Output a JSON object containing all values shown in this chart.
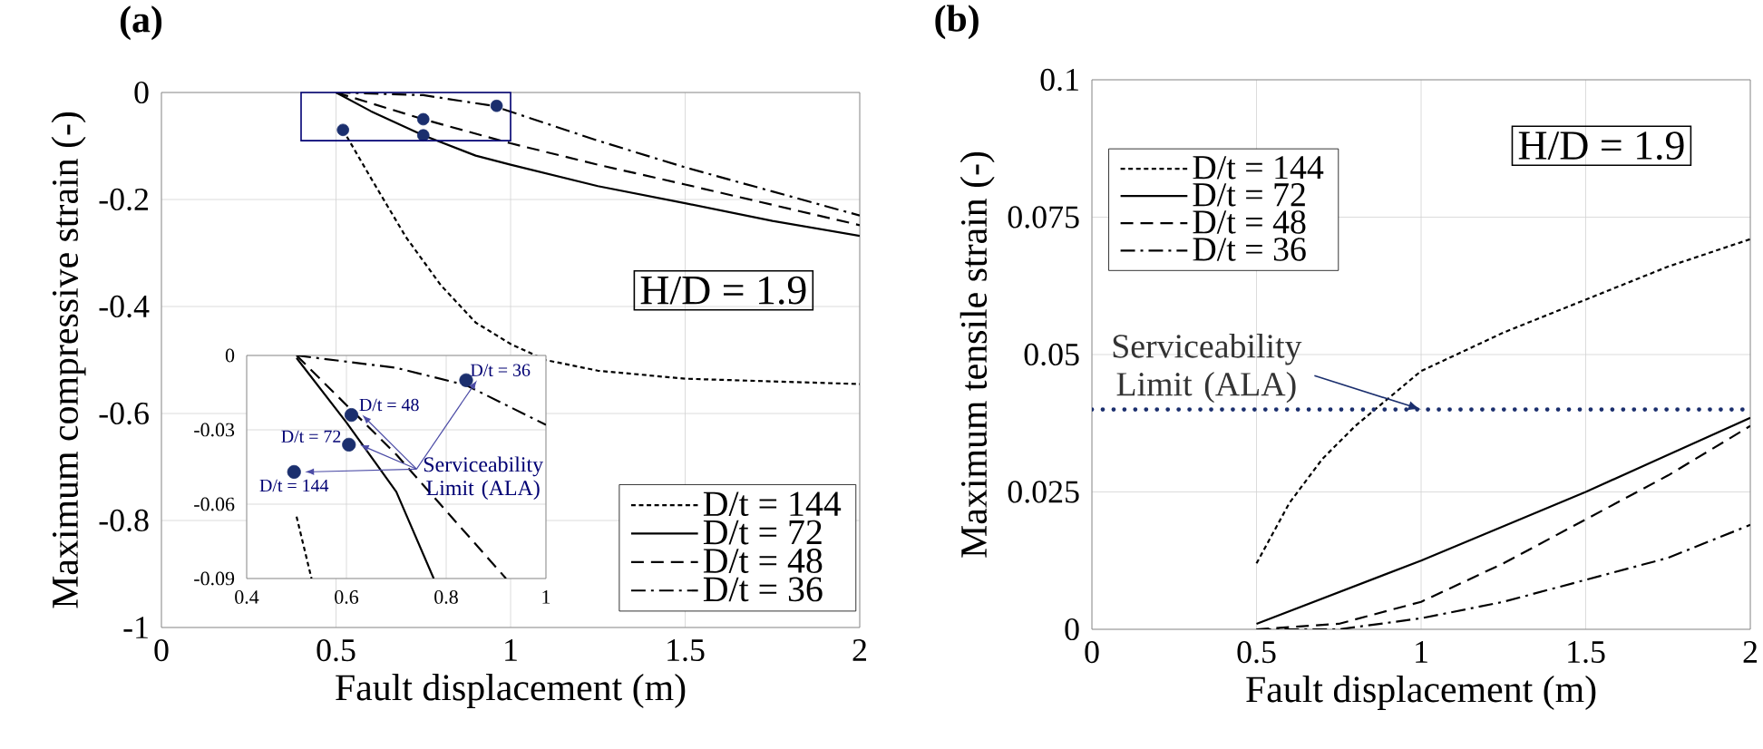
{
  "chart_data": [
    {
      "type": "line",
      "title": "(a)",
      "xlabel": "Fault displacement (m)",
      "ylabel": "Maximum compressive strain (-)",
      "xlim": [
        0,
        2
      ],
      "ylim": [
        -1,
        0
      ],
      "xticks": [
        0,
        0.5,
        1,
        1.5,
        2
      ],
      "yticks": [
        -1,
        -0.8,
        -0.6,
        -0.4,
        -0.2,
        0
      ],
      "grid": true,
      "legend": "bottom right",
      "annotations": [
        "H/D = 1.9"
      ],
      "series": [
        {
          "name": "D/t = 144",
          "color": "#000000",
          "line_style": "dotted",
          "x": [
            0.52,
            0.6,
            0.7,
            0.8,
            0.9,
            1.0,
            1.1,
            1.25,
            1.5,
            2
          ],
          "values": [
            -0.07,
            -0.16,
            -0.27,
            -0.36,
            -0.43,
            -0.47,
            -0.5,
            -0.52,
            -0.535,
            -0.545
          ]
        },
        {
          "name": "D/t = 72",
          "color": "#000000",
          "line_style": "solid",
          "x": [
            0.5,
            0.6,
            0.75,
            0.9,
            1,
            1.25,
            1.5,
            1.75,
            2
          ],
          "values": [
            0,
            -0.035,
            -0.08,
            -0.118,
            -0.135,
            -0.175,
            -0.207,
            -0.24,
            -0.268
          ]
        },
        {
          "name": "D/t = 48",
          "color": "#000000",
          "line_style": "dashed",
          "x": [
            0.5,
            0.75,
            1,
            1.25,
            1.5,
            1.75,
            2
          ],
          "values": [
            0,
            -0.05,
            -0.095,
            -0.135,
            -0.172,
            -0.21,
            -0.248
          ]
        },
        {
          "name": "D/t = 36",
          "color": "#000000",
          "line_style": "dashdot",
          "x": [
            0.5,
            0.75,
            0.95,
            1.25,
            1.5,
            1.75,
            2
          ],
          "values": [
            0,
            -0.005,
            -0.025,
            -0.09,
            -0.14,
            -0.185,
            -0.23
          ]
        },
        {
          "type": "scatter",
          "color": "#1b2f6e",
          "marker": "circle",
          "x": [
            0.52,
            0.75,
            0.75,
            0.96
          ],
          "values": [
            -0.07,
            -0.08,
            -0.05,
            -0.025
          ]
        }
      ]
    },
    {
      "type": "line",
      "xlim": [
        0.4,
        1
      ],
      "ylim": [
        -0.09,
        0
      ],
      "xticks": [
        0.4,
        0.6,
        0.8,
        1
      ],
      "yticks": [
        -0.09,
        -0.06,
        -0.03,
        0
      ],
      "grid": true,
      "annotations": [
        {
          "text": "D/t = 36",
          "x": 0.84,
          "y": -0.01
        },
        {
          "text": "D/t = 48",
          "x": 0.61,
          "y": -0.024
        },
        {
          "text": "D/t = 72",
          "x": 0.605,
          "y": -0.036
        },
        {
          "text": "D/t = 144",
          "x": 0.495,
          "y": -0.047
        },
        {
          "text": "Serviceability Limit (ALA)",
          "x": 0.84,
          "y": -0.01
        }
      ],
      "series": [
        {
          "color": "#000000",
          "line_style": "dotted",
          "x": [
            0.5,
            0.53
          ],
          "values": [
            -0.065,
            -0.09
          ]
        },
        {
          "color": "#000000",
          "line_style": "solid",
          "x": [
            0.5,
            0.6,
            0.7,
            0.775
          ],
          "values": [
            -0.001,
            -0.027,
            -0.055,
            -0.09
          ]
        },
        {
          "color": "#000000",
          "line_style": "dashed",
          "x": [
            0.5,
            0.7,
            0.92
          ],
          "values": [
            0,
            -0.04,
            -0.09
          ]
        },
        {
          "color": "#000000",
          "line_style": "dashdot",
          "x": [
            0.5,
            0.7,
            0.84,
            1
          ],
          "values": [
            0,
            -0.005,
            -0.012,
            -0.028
          ]
        },
        {
          "type": "scatter",
          "color": "#1b2f6e",
          "marker": "circle",
          "x": [
            0.84,
            0.61,
            0.605,
            0.495
          ],
          "values": [
            -0.01,
            -0.024,
            -0.036,
            -0.047
          ]
        }
      ]
    },
    {
      "type": "line",
      "title": "(b)",
      "xlabel": "Fault displacement (m)",
      "ylabel": "Maximum tensile strain (-)",
      "xlim": [
        0,
        2
      ],
      "ylim": [
        0,
        0.1
      ],
      "xticks": [
        0,
        0.5,
        1,
        1.5,
        2
      ],
      "yticks": [
        0,
        0.025,
        0.05,
        0.075,
        0.1
      ],
      "grid": true,
      "legend": "top left",
      "annotations": [
        "H/D = 1.9"
      ],
      "ref_lines": [
        {
          "axis": "y",
          "value": 0.04,
          "label": "Serviceability Limit (ALA)",
          "color": "#1b2f6e",
          "line_style": "dotted"
        }
      ],
      "series": [
        {
          "name": "D/t = 144",
          "color": "#000000",
          "line_style": "dotted",
          "x": [
            0.5,
            0.6,
            0.7,
            0.8,
            0.9,
            1.0,
            1.25,
            1.5,
            1.75,
            2
          ],
          "values": [
            0.012,
            0.023,
            0.031,
            0.037,
            0.042,
            0.047,
            0.054,
            0.06,
            0.066,
            0.071
          ]
        },
        {
          "name": "D/t = 72",
          "color": "#000000",
          "line_style": "solid",
          "x": [
            0.5,
            1,
            1.5,
            2
          ],
          "values": [
            0.001,
            0.0125,
            0.025,
            0.0385
          ]
        },
        {
          "name": "D/t = 48",
          "color": "#000000",
          "line_style": "dashed",
          "x": [
            0.5,
            0.75,
            1,
            1.25,
            1.5,
            1.75,
            2
          ],
          "values": [
            0,
            0.001,
            0.005,
            0.012,
            0.02,
            0.028,
            0.037
          ]
        },
        {
          "name": "D/t = 36",
          "color": "#000000",
          "line_style": "dashdot",
          "x": [
            0.5,
            0.75,
            1,
            1.25,
            1.5,
            1.75,
            2
          ],
          "values": [
            0,
            0,
            0.002,
            0.005,
            0.009,
            0.013,
            0.019
          ]
        }
      ]
    }
  ]
}
